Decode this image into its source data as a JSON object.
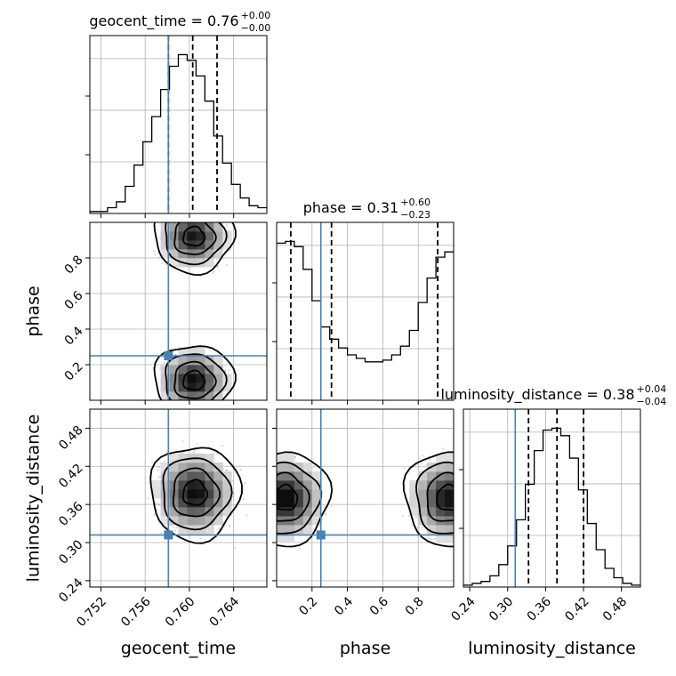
{
  "chart_data": {
    "type": "corner",
    "parameters": [
      {
        "name": "geocent_time",
        "label": "geocent_time",
        "range": [
          0.751,
          0.767
        ],
        "ticks": [
          "0.752",
          "0.756",
          "0.760",
          "0.764"
        ],
        "title": {
          "prefix": "geocent_time = 0.76",
          "plus": "+0.00",
          "minus": "−0.00"
        },
        "quantiles": [
          0.7581,
          0.7603,
          0.7625
        ],
        "truth": 0.7581,
        "hist": [
          1,
          1,
          3,
          6,
          14,
          25,
          37,
          50,
          64,
          76,
          82,
          79,
          71,
          58,
          40,
          26,
          15,
          8,
          4,
          3
        ]
      },
      {
        "name": "phase",
        "label": "phase",
        "range": [
          0.0,
          1.0
        ],
        "ticks": [
          "0.2",
          "0.4",
          "0.6",
          "0.8"
        ],
        "title": {
          "prefix": "phase = 0.31",
          "plus": "+0.60",
          "minus": "−0.23"
        },
        "quantiles": [
          0.08,
          0.31,
          0.91
        ],
        "truth": 0.25,
        "hist": [
          90,
          91,
          88,
          75,
          57,
          42,
          35,
          30,
          26,
          24,
          22,
          22,
          23,
          26,
          31,
          40,
          56,
          70,
          82,
          85
        ]
      },
      {
        "name": "luminosity_distance",
        "label": "luminosity_distance",
        "range": [
          0.23,
          0.51
        ],
        "ticks": [
          "0.24",
          "0.30",
          "0.36",
          "0.42",
          "0.48"
        ],
        "title": {
          "prefix": "luminosity_distance = 0.38",
          "plus": "+0.04",
          "minus": "−0.04"
        },
        "quantiles": [
          0.333,
          0.378,
          0.42
        ],
        "truth": 0.312,
        "hist": [
          1,
          2,
          3,
          6,
          12,
          22,
          36,
          55,
          73,
          84,
          85,
          81,
          69,
          52,
          34,
          20,
          10,
          5,
          2,
          1
        ]
      }
    ],
    "truth_color": "#4682b4"
  }
}
